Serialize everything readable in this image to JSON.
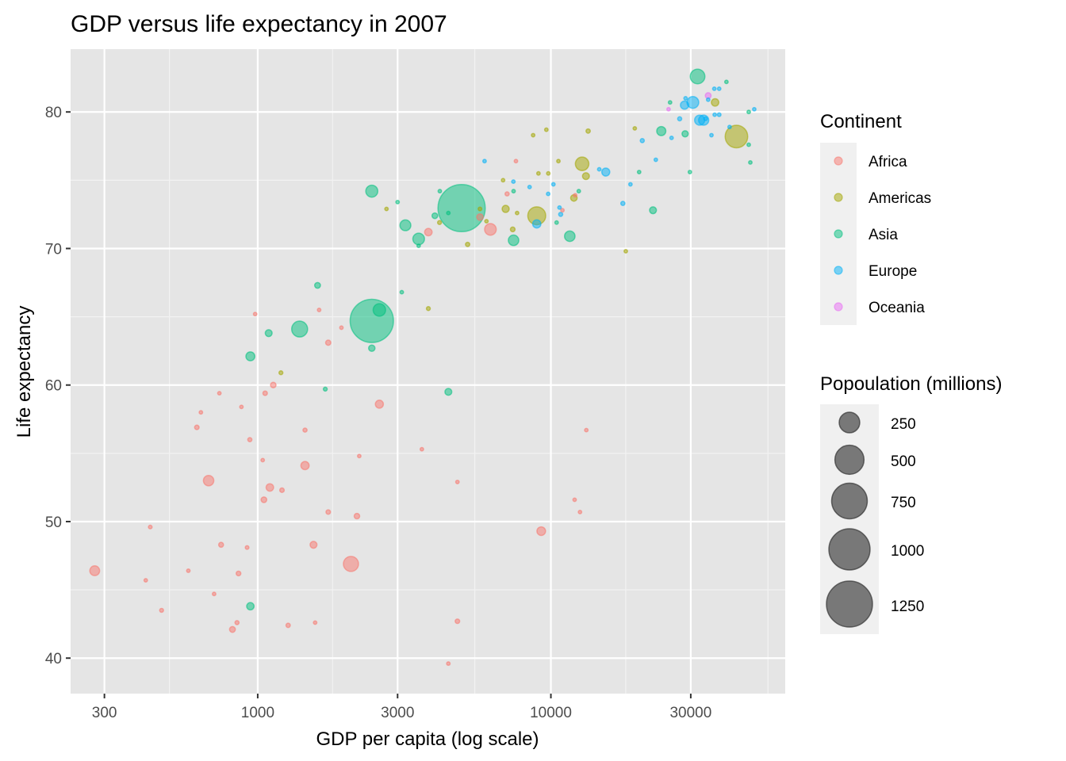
{
  "chart_data": {
    "type": "scatter",
    "title": "GDP versus life expectancy in 2007",
    "xlabel": "GDP per capita (log scale)",
    "ylabel": "Life expectancy",
    "x_scale": "log10",
    "xlim": [
      230,
      63000
    ],
    "ylim": [
      37.4,
      84.6
    ],
    "x_ticks": [
      300,
      1000,
      3000,
      10000,
      30000
    ],
    "x_tick_labels": [
      "300",
      "1000",
      "3000",
      "10000",
      "30000"
    ],
    "x_minor_breaks": [
      500,
      1800,
      5500,
      18000,
      55000
    ],
    "y_ticks": [
      40,
      50,
      60,
      70,
      80
    ],
    "y_tick_labels": [
      "40",
      "50",
      "60",
      "70",
      "80"
    ],
    "y_minor_breaks": [
      45,
      55,
      65,
      75
    ],
    "grid": true,
    "panel_background": "#e5e5e5",
    "point_alpha": 0.5,
    "legend_position": "right",
    "color_legend": {
      "title": "Continent",
      "entries": [
        {
          "label": "Africa",
          "color": "#F8766D"
        },
        {
          "label": "Americas",
          "color": "#A3A500"
        },
        {
          "label": "Asia",
          "color": "#00BF7D"
        },
        {
          "label": "Europe",
          "color": "#00B0F6"
        },
        {
          "label": "Oceania",
          "color": "#E76BF3"
        }
      ]
    },
    "size_legend": {
      "title": "Popoulation (millions)",
      "entries": [
        {
          "label": "250",
          "value": 250
        },
        {
          "label": "500",
          "value": 500
        },
        {
          "label": "750",
          "value": 750
        },
        {
          "label": "1000",
          "value": 1000
        },
        {
          "label": "1250",
          "value": 1250
        }
      ],
      "color": "#333333"
    },
    "series": [
      {
        "name": "Africa",
        "points": [
          [
            278,
            46.4,
            57
          ],
          [
            430,
            49.6,
            8
          ],
          [
            415,
            45.7,
            4
          ],
          [
            470,
            43.5,
            9
          ],
          [
            580,
            46.4,
            2
          ],
          [
            620,
            56.9,
            12
          ],
          [
            640,
            58.0,
            5
          ],
          [
            680,
            53.0,
            64
          ],
          [
            710,
            44.7,
            4
          ],
          [
            740,
            59.4,
            2
          ],
          [
            750,
            48.3,
            14
          ],
          [
            820,
            42.1,
            20
          ],
          [
            850,
            42.6,
            10
          ],
          [
            860,
            46.2,
            13
          ],
          [
            880,
            58.4,
            6
          ],
          [
            920,
            48.1,
            8
          ],
          [
            940,
            56.0,
            10
          ],
          [
            980,
            65.2,
            1
          ],
          [
            1040,
            54.5,
            6
          ],
          [
            1060,
            59.4,
            12
          ],
          [
            1050,
            51.6,
            19
          ],
          [
            1100,
            52.5,
            33
          ],
          [
            1130,
            60.0,
            18
          ],
          [
            1210,
            52.3,
            12
          ],
          [
            1270,
            42.4,
            11
          ],
          [
            1450,
            56.7,
            10
          ],
          [
            1450,
            54.1,
            40
          ],
          [
            1550,
            48.3,
            28
          ],
          [
            1570,
            42.6,
            6
          ],
          [
            1620,
            65.5,
            1
          ],
          [
            1740,
            63.1,
            16
          ],
          [
            1740,
            50.7,
            12
          ],
          [
            1930,
            64.2,
            3
          ],
          [
            2080,
            46.9,
            135
          ],
          [
            2180,
            50.4,
            18
          ],
          [
            2220,
            54.8,
            1
          ],
          [
            2600,
            58.6,
            38
          ],
          [
            3630,
            55.3,
            6
          ],
          [
            3820,
            71.2,
            33
          ],
          [
            4470,
            39.6,
            2
          ],
          [
            4800,
            42.7,
            12
          ],
          [
            4800,
            52.9,
            2
          ],
          [
            5730,
            72.3,
            25
          ],
          [
            6220,
            71.4,
            80
          ],
          [
            7090,
            74.0,
            10
          ],
          [
            7600,
            76.4,
            1
          ],
          [
            9270,
            49.3,
            44
          ],
          [
            12050,
            51.6,
            1
          ],
          [
            12570,
            50.7,
            2
          ],
          [
            13210,
            56.7,
            1
          ],
          [
            10950,
            72.8,
            6
          ],
          [
            12100,
            73.9,
            5
          ]
        ]
      },
      {
        "name": "Americas",
        "points": [
          [
            1200,
            60.9,
            9
          ],
          [
            2750,
            72.9,
            6
          ],
          [
            3820,
            65.6,
            9
          ],
          [
            4170,
            71.9,
            9
          ],
          [
            5200,
            70.3,
            11
          ],
          [
            5730,
            72.9,
            8
          ],
          [
            6030,
            72.0,
            4
          ],
          [
            6870,
            75.0,
            4
          ],
          [
            7010,
            72.9,
            30
          ],
          [
            7410,
            71.4,
            13
          ],
          [
            7670,
            72.6,
            3
          ],
          [
            8950,
            72.4,
            190
          ],
          [
            8700,
            78.3,
            4
          ],
          [
            9070,
            75.5,
            1
          ],
          [
            9650,
            78.7,
            3
          ],
          [
            9800,
            75.5,
            1
          ],
          [
            10610,
            76.4,
            3
          ],
          [
            11980,
            73.7,
            25
          ],
          [
            12780,
            76.2,
            108
          ],
          [
            13170,
            75.3,
            28
          ],
          [
            13400,
            78.6,
            11
          ],
          [
            18010,
            69.8,
            1
          ],
          [
            19330,
            78.8,
            4
          ],
          [
            36320,
            80.7,
            33
          ],
          [
            42950,
            78.2,
            301
          ]
        ]
      },
      {
        "name": "Asia",
        "points": [
          [
            944,
            43.8,
            32
          ],
          [
            944,
            62.1,
            47
          ],
          [
            1090,
            63.8,
            28
          ],
          [
            1390,
            64.1,
            150
          ],
          [
            1600,
            67.3,
            20
          ],
          [
            1700,
            59.7,
            9
          ],
          [
            2450,
            64.7,
            1110
          ],
          [
            2450,
            62.7,
            24
          ],
          [
            2600,
            65.5,
            92
          ],
          [
            2450,
            74.2,
            85
          ],
          [
            3100,
            66.8,
            2
          ],
          [
            3000,
            73.4,
            3
          ],
          [
            3190,
            71.7,
            70
          ],
          [
            3540,
            70.7,
            80
          ],
          [
            3540,
            70.2,
            2
          ],
          [
            4020,
            72.4,
            19
          ],
          [
            4180,
            74.2,
            5
          ],
          [
            4470,
            72.6,
            2
          ],
          [
            4470,
            59.5,
            28
          ],
          [
            4960,
            72.96,
            1318
          ],
          [
            7460,
            70.6,
            65
          ],
          [
            7460,
            74.2,
            3
          ],
          [
            10460,
            71.9,
            2
          ],
          [
            11600,
            70.9,
            65
          ],
          [
            12450,
            74.2,
            4
          ],
          [
            20000,
            75.6,
            2
          ],
          [
            22300,
            72.8,
            28
          ],
          [
            23800,
            78.6,
            49
          ],
          [
            25500,
            80.7,
            7
          ],
          [
            28700,
            78.4,
            23
          ],
          [
            29800,
            75.6,
            1
          ],
          [
            31650,
            82.6,
            127
          ],
          [
            39700,
            82.2,
            4
          ],
          [
            47300,
            80.0,
            1
          ],
          [
            47300,
            77.6,
            4
          ],
          [
            47900,
            76.3,
            1
          ]
        ]
      },
      {
        "name": "Europe",
        "points": [
          [
            5940,
            76.4,
            4
          ],
          [
            7450,
            74.9,
            2
          ],
          [
            8460,
            74.5,
            1
          ],
          [
            9790,
            74.0,
            4
          ],
          [
            8950,
            71.8,
            40
          ],
          [
            10200,
            74.7,
            7
          ],
          [
            10700,
            73.0,
            4
          ],
          [
            10800,
            72.5,
            10
          ],
          [
            14620,
            75.8,
            2
          ],
          [
            15390,
            75.6,
            38
          ],
          [
            17600,
            73.3,
            10
          ],
          [
            18680,
            74.7,
            5
          ],
          [
            20500,
            77.9,
            10
          ],
          [
            22800,
            76.5,
            5
          ],
          [
            25800,
            78.1,
            2
          ],
          [
            27500,
            79.5,
            10
          ],
          [
            28570,
            80.5,
            40
          ],
          [
            28800,
            81.0,
            5
          ],
          [
            30500,
            80.7,
            82
          ],
          [
            32170,
            79.4,
            60
          ],
          [
            33200,
            79.4,
            61
          ],
          [
            33700,
            79.5,
            8
          ],
          [
            34400,
            80.9,
            2
          ],
          [
            35300,
            78.3,
            4
          ],
          [
            36200,
            79.8,
            5
          ],
          [
            37500,
            79.8,
            8
          ],
          [
            36100,
            81.7,
            1
          ],
          [
            37500,
            81.7,
            7
          ],
          [
            40700,
            78.9,
            1
          ],
          [
            49400,
            80.2,
            5
          ]
        ]
      },
      {
        "name": "Oceania",
        "points": [
          [
            25200,
            80.2,
            4
          ],
          [
            34400,
            81.2,
            20
          ]
        ]
      }
    ]
  }
}
